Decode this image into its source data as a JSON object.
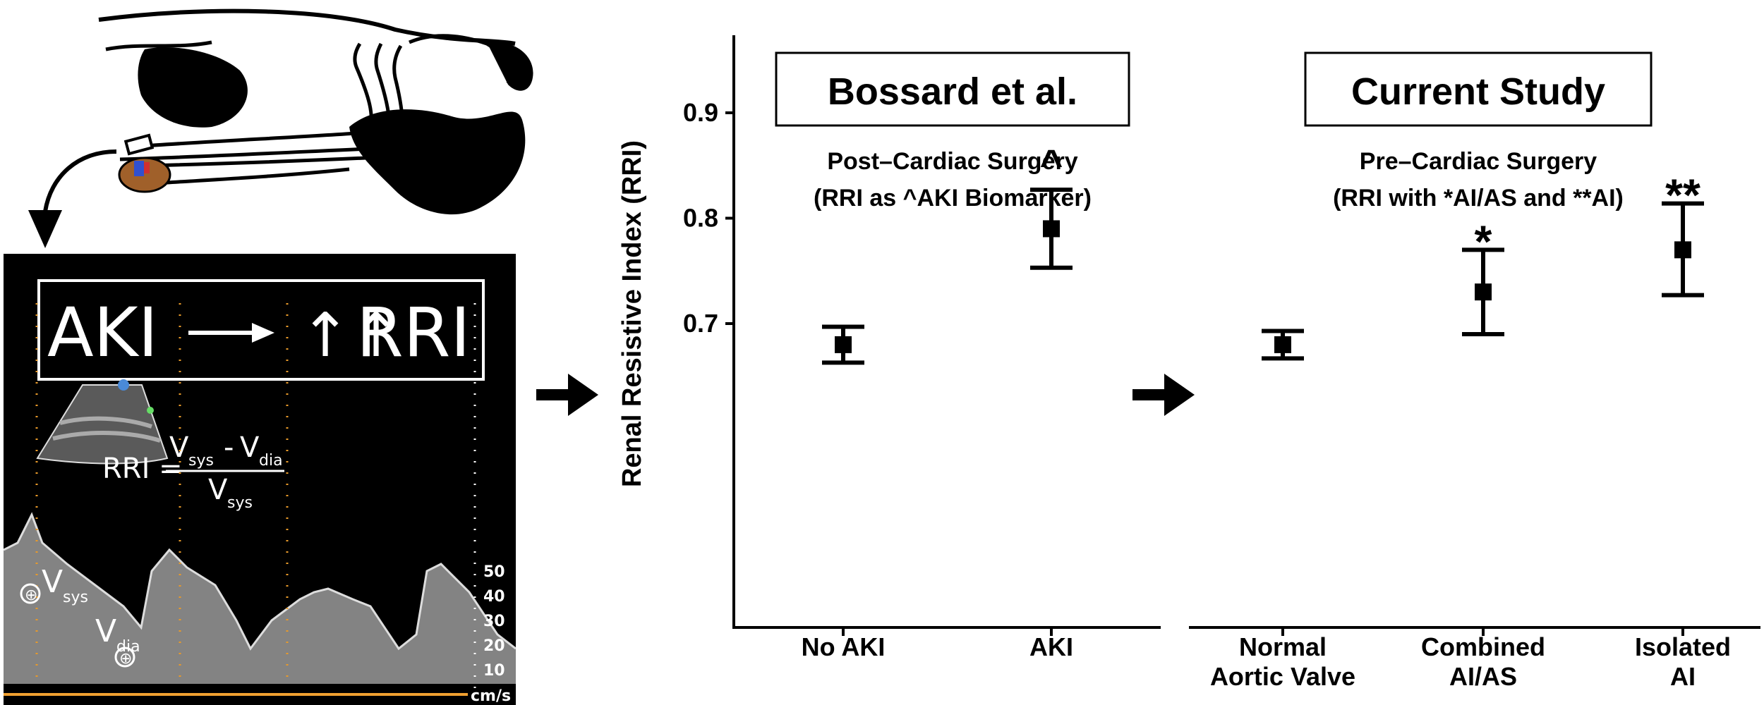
{
  "ultrasound": {
    "headline_left": "AKI",
    "headline_arrows": "↑↑",
    "headline_right": "RRI",
    "formula_lhs": "RRI =",
    "formula_v": "V",
    "formula_sys": "sys",
    "formula_minus": "-",
    "formula_dia": "dia",
    "label_vsys_v": "V",
    "label_vsys_sub": "sys",
    "label_vdia_v": "V",
    "label_vdia_sub": "dia",
    "scale_ticks": [
      "50",
      "40",
      "30",
      "20",
      "10"
    ],
    "scale_unit": "cm/s",
    "colors": {
      "background": "#000000",
      "scale": "#f0a030",
      "trace_marks": "#e89a2a"
    }
  },
  "chart_data": {
    "type": "scatter",
    "ylabel": "Renal Resistive Index (RRI)",
    "ylim": [
      0.64,
      0.98
    ],
    "yticks": [
      0.7,
      0.8,
      0.9
    ],
    "ytick_labels": [
      "0.7",
      "0.8",
      "0.9"
    ],
    "panels": [
      {
        "title": "Bossard et al.",
        "subtitle_line1": "Post–Cardiac Surgery",
        "subtitle_line2": "(RRI as ^AKI Biomarker)",
        "categories": [
          [
            "No AKI"
          ],
          [
            "AKI"
          ]
        ],
        "mean": [
          0.68,
          0.79
        ],
        "lower": [
          0.663,
          0.753
        ],
        "upper": [
          0.697,
          0.827
        ],
        "annotations": [
          "",
          "^"
        ]
      },
      {
        "title": "Current Study",
        "subtitle_line1": "Pre–Cardiac Surgery",
        "subtitle_line2": "(RRI with *AI/AS and **AI)",
        "categories": [
          [
            "Normal",
            "Aortic Valve"
          ],
          [
            "Combined",
            "AI/AS"
          ],
          [
            "Isolated",
            "AI"
          ]
        ],
        "mean": [
          0.68,
          0.73,
          0.77
        ],
        "lower": [
          0.667,
          0.69,
          0.727
        ],
        "upper": [
          0.693,
          0.77,
          0.814
        ],
        "annotations": [
          "",
          "*",
          "**"
        ]
      }
    ]
  }
}
